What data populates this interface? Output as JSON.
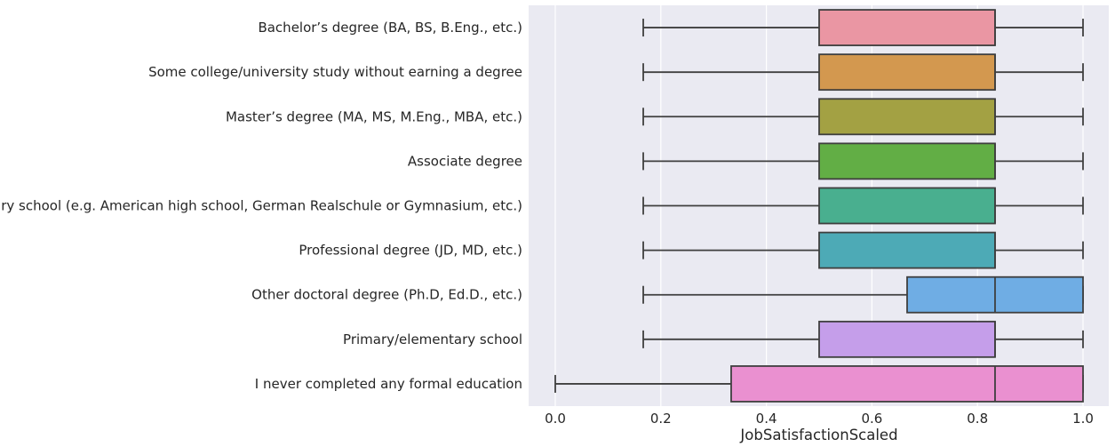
{
  "chart_data": {
    "type": "boxplot",
    "orientation": "horizontal",
    "xlabel": "JobSatisfactionScaled",
    "xlim": [
      -0.05,
      1.05
    ],
    "xticks": [
      0.0,
      0.2,
      0.4,
      0.6,
      0.8,
      1.0
    ],
    "xtick_labels": [
      "0.0",
      "0.2",
      "0.4",
      "0.6",
      "0.8",
      "1.0"
    ],
    "grid": true,
    "background": "#EAEAF2",
    "categories": [
      "Bachelor’s degree (BA, BS, B.Eng., etc.)",
      "Some college/university study without earning a degree",
      "Master’s degree (MA, MS, M.Eng., MBA, etc.)",
      "Associate degree",
      "Secondary school (e.g. American high school, German Realschule or Gymnasium, etc.)",
      "Professional degree (JD, MD, etc.)",
      "Other doctoral degree (Ph.D, Ed.D., etc.)",
      "Primary/elementary school",
      "I never completed any formal education"
    ],
    "boxes": [
      {
        "whisker_low": 0.1667,
        "q1": 0.5,
        "median": 0.8333,
        "q3": 0.8333,
        "whisker_high": 1.0,
        "color": "#EA96A3"
      },
      {
        "whisker_low": 0.1667,
        "q1": 0.5,
        "median": 0.8333,
        "q3": 0.8333,
        "whisker_high": 1.0,
        "color": "#D3984F"
      },
      {
        "whisker_low": 0.1667,
        "q1": 0.5,
        "median": 0.8333,
        "q3": 0.8333,
        "whisker_high": 1.0,
        "color": "#A3A143"
      },
      {
        "whisker_low": 0.1667,
        "q1": 0.5,
        "median": 0.8333,
        "q3": 0.8333,
        "whisker_high": 1.0,
        "color": "#62AE45"
      },
      {
        "whisker_low": 0.1667,
        "q1": 0.5,
        "median": 0.8333,
        "q3": 0.8333,
        "whisker_high": 1.0,
        "color": "#49AF8F"
      },
      {
        "whisker_low": 0.1667,
        "q1": 0.5,
        "median": 0.8333,
        "q3": 0.8333,
        "whisker_high": 1.0,
        "color": "#4DAAB6"
      },
      {
        "whisker_low": 0.1667,
        "q1": 0.6667,
        "median": 0.8333,
        "q3": 1.0,
        "whisker_high": 1.0,
        "color": "#6FADE4"
      },
      {
        "whisker_low": 0.1667,
        "q1": 0.5,
        "median": 0.8333,
        "q3": 0.8333,
        "whisker_high": 1.0,
        "color": "#C59EEA"
      },
      {
        "whisker_low": 0.0,
        "q1": 0.3333,
        "median": 0.8333,
        "q3": 1.0,
        "whisker_high": 1.0,
        "color": "#EA90D0"
      }
    ],
    "line_color": "#3F3F3F"
  }
}
